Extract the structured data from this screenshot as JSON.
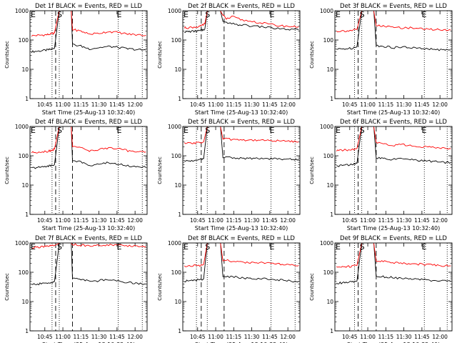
{
  "shared": {
    "ylabel": "Counts/sec",
    "xlabel": "Start Time (25-Aug-13 10:32:40)",
    "y_ticks": [
      "1",
      "10",
      "100",
      "1000"
    ],
    "x_ticks": [
      "10:45",
      "11:00",
      "11:15",
      "11:30",
      "11:45",
      "12:00"
    ],
    "marker_labels": {
      "eclipse": "E",
      "saa": "S"
    },
    "colors": {
      "events": "#000000",
      "lld": "#ff0000"
    }
  },
  "chart_data": [
    {
      "type": "line",
      "title": "Det 1f BLACK = Events, RED = LLD",
      "xlim": [
        "10:32:40",
        "12:10"
      ],
      "ylim": [
        1,
        1000
      ],
      "yscale": "log",
      "marker_times": {
        "eclipse_start": "10:32:40",
        "saa_start": "10:57",
        "saa_end": "11:07",
        "eclipse_end": "11:46"
      },
      "dotted_times": [
        "10:51",
        "10:57",
        "11:46",
        "12:06"
      ],
      "dashed_times": [
        "10:54",
        "11:08"
      ],
      "series": [
        {
          "name": "Events",
          "x": [
            "10:34",
            "10:40",
            "10:46",
            "10:50",
            "10:53",
            "11:08",
            "11:15",
            "11:22",
            "11:30",
            "11:38",
            "11:46",
            "11:54",
            "12:02",
            "12:09"
          ],
          "y": [
            40,
            42,
            45,
            48,
            52,
            70,
            62,
            50,
            55,
            60,
            56,
            50,
            47,
            45
          ]
        },
        {
          "name": "LLD",
          "x": [
            "10:34",
            "10:40",
            "10:46",
            "10:50",
            "10:53",
            "11:08",
            "11:15",
            "11:22",
            "11:30",
            "11:38",
            "11:46",
            "11:54",
            "12:02",
            "12:09"
          ],
          "y": [
            140,
            145,
            150,
            160,
            175,
            230,
            200,
            160,
            170,
            195,
            180,
            160,
            150,
            145
          ]
        }
      ]
    },
    {
      "type": "line",
      "title": "Det 2f BLACK = Events, RED = LLD",
      "xlim": [
        "10:32:40",
        "12:10"
      ],
      "ylim": [
        1,
        1000
      ],
      "yscale": "log",
      "marker_times": {
        "eclipse_start": "10:32:40",
        "saa_start": "10:53",
        "saa_end": "11:04",
        "eclipse_end": "11:46"
      },
      "dotted_times": [
        "10:44",
        "10:53",
        "11:46",
        "12:06"
      ],
      "dashed_times": [
        "10:48",
        "11:07"
      ],
      "series": [
        {
          "name": "Events",
          "x": [
            "10:34",
            "10:38",
            "10:44",
            "10:48",
            "10:51",
            "11:06",
            "11:12",
            "11:20",
            "11:30",
            "11:40",
            "11:50",
            "12:00",
            "12:09"
          ],
          "y": [
            190,
            195,
            200,
            210,
            240,
            420,
            360,
            330,
            300,
            280,
            250,
            230,
            220
          ]
        },
        {
          "name": "LLD",
          "x": [
            "10:34",
            "10:38",
            "10:44",
            "10:48",
            "10:51",
            "11:06",
            "11:09",
            "11:14",
            "11:22",
            "11:32",
            "11:42",
            "11:52",
            "12:02",
            "12:09"
          ],
          "y": [
            260,
            265,
            280,
            300,
            360,
            700,
            520,
            620,
            480,
            420,
            360,
            310,
            290,
            280
          ]
        }
      ]
    },
    {
      "type": "line",
      "title": "Det 3f BLACK = Events, RED = LLD",
      "xlim": [
        "10:32:40",
        "12:10"
      ],
      "ylim": [
        1,
        1000
      ],
      "yscale": "log",
      "marker_times": {
        "eclipse_start": "10:32:40",
        "saa_start": "10:55",
        "saa_end": "11:05",
        "eclipse_end": "11:46"
      },
      "dotted_times": [
        "10:49",
        "10:55",
        "11:47",
        "12:06"
      ],
      "dashed_times": [
        "10:52",
        "11:07"
      ],
      "series": [
        {
          "name": "Events",
          "x": [
            "10:34",
            "10:40",
            "10:46",
            "10:51",
            "11:07",
            "11:14",
            "11:22",
            "11:30",
            "11:38",
            "11:46",
            "11:54",
            "12:02",
            "12:09"
          ],
          "y": [
            48,
            50,
            52,
            60,
            65,
            60,
            55,
            57,
            54,
            50,
            48,
            46,
            45
          ]
        },
        {
          "name": "LLD",
          "x": [
            "10:34",
            "10:40",
            "10:46",
            "10:51",
            "11:07",
            "11:14",
            "11:22",
            "11:30",
            "11:38",
            "11:46",
            "11:54",
            "12:02",
            "12:09"
          ],
          "y": [
            200,
            205,
            210,
            230,
            320,
            290,
            270,
            260,
            260,
            240,
            230,
            225,
            220
          ]
        }
      ]
    },
    {
      "type": "line",
      "title": "Det 4f BLACK = Events, RED = LLD",
      "xlim": [
        "10:32:40",
        "12:10"
      ],
      "ylim": [
        1,
        1000
      ],
      "yscale": "log",
      "marker_times": {
        "eclipse_start": "10:32:40",
        "saa_start": "10:57",
        "saa_end": "11:07",
        "eclipse_end": "11:46"
      },
      "dotted_times": [
        "10:51",
        "10:57",
        "11:46",
        "12:06"
      ],
      "dashed_times": [
        "10:54",
        "11:08"
      ],
      "series": [
        {
          "name": "Events",
          "x": [
            "10:34",
            "10:40",
            "10:46",
            "10:50",
            "10:53",
            "11:08",
            "11:15",
            "11:22",
            "11:30",
            "11:38",
            "11:46",
            "11:54",
            "12:02",
            "12:09"
          ],
          "y": [
            38,
            40,
            44,
            46,
            50,
            70,
            60,
            48,
            52,
            58,
            52,
            46,
            42,
            40
          ]
        },
        {
          "name": "LLD",
          "x": [
            "10:34",
            "10:40",
            "10:46",
            "10:50",
            "10:53",
            "11:08",
            "11:15",
            "11:22",
            "11:30",
            "11:38",
            "11:46",
            "11:54",
            "12:02",
            "12:09"
          ],
          "y": [
            130,
            135,
            140,
            150,
            170,
            220,
            180,
            150,
            160,
            190,
            170,
            150,
            140,
            135
          ]
        }
      ]
    },
    {
      "type": "line",
      "title": "Det 5f BLACK = Events, RED = LLD",
      "xlim": [
        "10:32:40",
        "12:10"
      ],
      "ylim": [
        1,
        1000
      ],
      "yscale": "log",
      "marker_times": {
        "eclipse_start": "10:32:40",
        "saa_start": "10:53",
        "saa_end": "11:04",
        "eclipse_end": "11:46"
      },
      "dotted_times": [
        "10:44",
        "10:53",
        "11:46",
        "12:06"
      ],
      "dashed_times": [
        "10:48",
        "11:07"
      ],
      "series": [
        {
          "name": "Events",
          "x": [
            "10:34",
            "10:40",
            "10:46",
            "10:50",
            "11:06",
            "11:14",
            "11:22",
            "11:30",
            "11:38",
            "11:46",
            "11:54",
            "12:02",
            "12:09"
          ],
          "y": [
            65,
            68,
            72,
            80,
            90,
            85,
            82,
            80,
            82,
            80,
            78,
            76,
            75
          ]
        },
        {
          "name": "LLD",
          "x": [
            "10:34",
            "10:40",
            "10:46",
            "10:50",
            "11:06",
            "11:14",
            "11:22",
            "11:30",
            "11:38",
            "11:46",
            "11:54",
            "12:02",
            "12:09"
          ],
          "y": [
            260,
            270,
            280,
            300,
            380,
            360,
            350,
            340,
            345,
            330,
            320,
            310,
            300
          ]
        }
      ]
    },
    {
      "type": "line",
      "title": "Det 6f BLACK = Events, RED = LLD",
      "xlim": [
        "10:32:40",
        "12:10"
      ],
      "ylim": [
        1,
        1000
      ],
      "yscale": "log",
      "marker_times": {
        "eclipse_start": "10:32:40",
        "saa_start": "10:55",
        "saa_end": "11:05",
        "eclipse_end": "11:46"
      },
      "dotted_times": [
        "10:49",
        "10:55",
        "11:47",
        "12:06"
      ],
      "dashed_times": [
        "10:52",
        "11:07"
      ],
      "series": [
        {
          "name": "Events",
          "x": [
            "10:34",
            "10:40",
            "10:46",
            "10:51",
            "11:07",
            "11:14",
            "11:22",
            "11:30",
            "11:38",
            "11:46",
            "11:54",
            "12:02",
            "12:09"
          ],
          "y": [
            45,
            47,
            50,
            55,
            85,
            80,
            75,
            78,
            72,
            68,
            64,
            60,
            58
          ]
        },
        {
          "name": "LLD",
          "x": [
            "10:34",
            "10:40",
            "10:46",
            "10:51",
            "11:07",
            "11:14",
            "11:22",
            "11:30",
            "11:38",
            "11:46",
            "11:54",
            "12:02",
            "12:09"
          ],
          "y": [
            150,
            155,
            160,
            175,
            280,
            250,
            230,
            240,
            220,
            205,
            190,
            180,
            175
          ]
        }
      ]
    },
    {
      "type": "line",
      "title": "Det 7f BLACK = Events, RED = LLD",
      "xlim": [
        "10:32:40",
        "12:10"
      ],
      "ylim": [
        1,
        1000
      ],
      "yscale": "log",
      "marker_times": {
        "eclipse_start": "10:32:40",
        "saa_start": "10:57",
        "saa_end": "11:07",
        "eclipse_end": "11:46"
      },
      "dotted_times": [
        "10:51",
        "10:57",
        "11:46",
        "12:06"
      ],
      "dashed_times": [
        "10:54",
        "11:08"
      ],
      "series": [
        {
          "name": "Events",
          "x": [
            "10:34",
            "10:40",
            "10:46",
            "10:50",
            "10:53",
            "11:08",
            "11:15",
            "11:22",
            "11:30",
            "11:38",
            "11:46",
            "11:54",
            "12:02",
            "12:09"
          ],
          "y": [
            38,
            40,
            42,
            44,
            48,
            65,
            58,
            48,
            52,
            56,
            50,
            44,
            42,
            40
          ]
        },
        {
          "name": "LLD",
          "x": [
            "10:34",
            "10:40",
            "10:46",
            "10:50",
            "10:53",
            "11:08",
            "11:15",
            "11:22",
            "11:30",
            "11:38",
            "11:46",
            "11:54",
            "12:02",
            "12:09"
          ],
          "y": [
            700,
            720,
            750,
            780,
            820,
            900,
            850,
            800,
            820,
            860,
            830,
            800,
            780,
            760
          ]
        }
      ]
    },
    {
      "type": "line",
      "title": "Det 8f BLACK = Events, RED = LLD",
      "xlim": [
        "10:32:40",
        "12:10"
      ],
      "ylim": [
        1,
        1000
      ],
      "yscale": "log",
      "marker_times": {
        "eclipse_start": "10:32:40",
        "saa_start": "10:53",
        "saa_end": "11:04",
        "eclipse_end": "11:46"
      },
      "dotted_times": [
        "10:44",
        "10:53",
        "11:46",
        "12:06"
      ],
      "dashed_times": [
        "10:48",
        "11:07"
      ],
      "series": [
        {
          "name": "Events",
          "x": [
            "10:34",
            "10:40",
            "10:46",
            "10:50",
            "11:06",
            "11:14",
            "11:22",
            "11:30",
            "11:38",
            "11:46",
            "11:54",
            "12:02",
            "12:09"
          ],
          "y": [
            50,
            52,
            55,
            60,
            75,
            70,
            65,
            60,
            62,
            58,
            54,
            50,
            48
          ]
        },
        {
          "name": "LLD",
          "x": [
            "10:34",
            "10:40",
            "10:46",
            "10:50",
            "11:06",
            "11:14",
            "11:22",
            "11:30",
            "11:38",
            "11:46",
            "11:54",
            "12:02",
            "12:09"
          ],
          "y": [
            160,
            165,
            170,
            185,
            260,
            240,
            220,
            210,
            215,
            200,
            185,
            175,
            170
          ]
        }
      ]
    },
    {
      "type": "line",
      "title": "Det 9f BLACK = Events, RED = LLD",
      "xlim": [
        "10:32:40",
        "12:10"
      ],
      "ylim": [
        1,
        1000
      ],
      "yscale": "log",
      "marker_times": {
        "eclipse_start": "10:32:40",
        "saa_start": "10:55",
        "saa_end": "11:05",
        "eclipse_end": "11:46"
      },
      "dotted_times": [
        "10:49",
        "10:55",
        "11:47",
        "12:06"
      ],
      "dashed_times": [
        "10:52",
        "11:07"
      ],
      "series": [
        {
          "name": "Events",
          "x": [
            "10:34",
            "10:40",
            "10:46",
            "10:51",
            "11:07",
            "11:14",
            "11:22",
            "11:30",
            "11:38",
            "11:46",
            "11:54",
            "12:02",
            "12:09"
          ],
          "y": [
            42,
            44,
            46,
            50,
            75,
            70,
            65,
            62,
            60,
            56,
            52,
            50,
            48
          ]
        },
        {
          "name": "LLD",
          "x": [
            "10:34",
            "10:40",
            "10:46",
            "10:51",
            "11:07",
            "11:14",
            "11:22",
            "11:30",
            "11:38",
            "11:46",
            "11:54",
            "12:02",
            "12:09"
          ],
          "y": [
            150,
            155,
            160,
            170,
            250,
            230,
            215,
            200,
            195,
            185,
            175,
            170,
            165
          ]
        }
      ]
    }
  ]
}
